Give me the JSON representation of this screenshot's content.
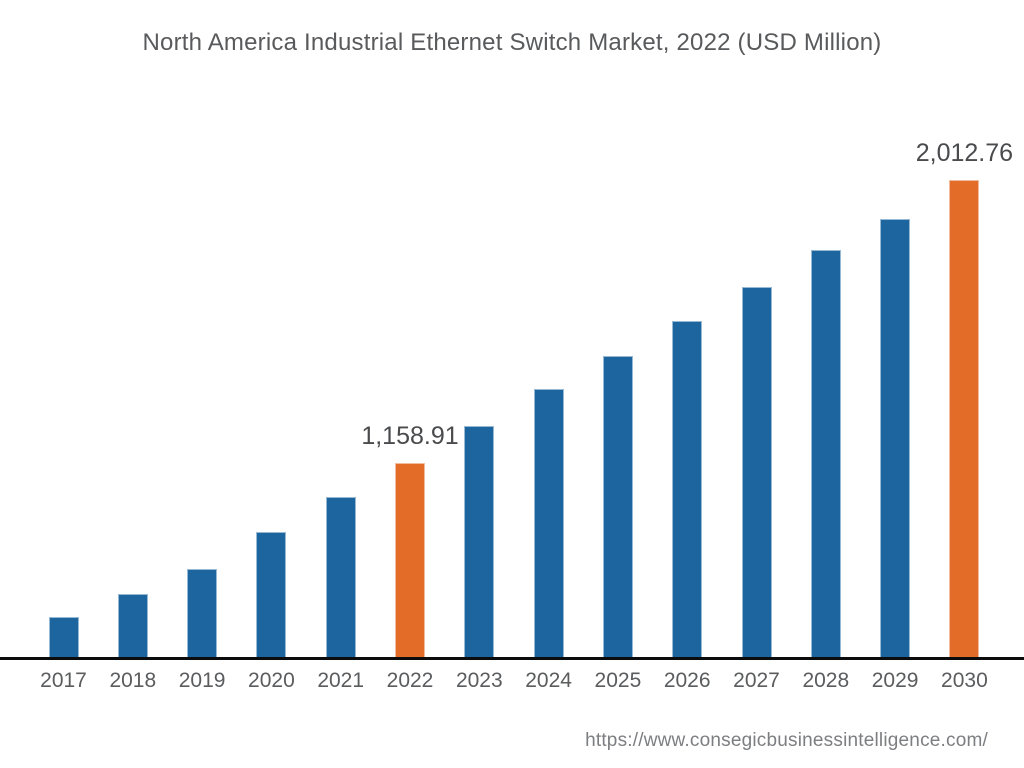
{
  "chart_data": {
    "type": "bar",
    "title": "North America Industrial Ethernet Switch Market, 2022 (USD Million)",
    "xlabel": "",
    "ylabel": "",
    "categories": [
      "2017",
      "2018",
      "2019",
      "2020",
      "2021",
      "2022",
      "2023",
      "2024",
      "2025",
      "2026",
      "2027",
      "2028",
      "2029",
      "2030"
    ],
    "values": [
      697,
      764,
      839,
      951,
      1056,
      1158.91,
      1270,
      1382,
      1482,
      1587,
      1690,
      1801,
      1895,
      2012.76
    ],
    "value_labels": {
      "2022": "1,158.91",
      "2030": "2,012.76"
    },
    "highlighted": [
      "2022",
      "2030"
    ],
    "colors": {
      "bar_default": "#1c659e",
      "bar_highlight": "#e26c28",
      "axis_line": "#0c0c0c",
      "label_text": "#4a4b4d",
      "tick_text": "#5b5c5e",
      "title_text": "#595a5c"
    },
    "ylim": [
      575,
      2012.76
    ],
    "grid": false,
    "legend": false
  },
  "footer": {
    "url": "https://www.consegicbusinessintelligence.com/"
  }
}
